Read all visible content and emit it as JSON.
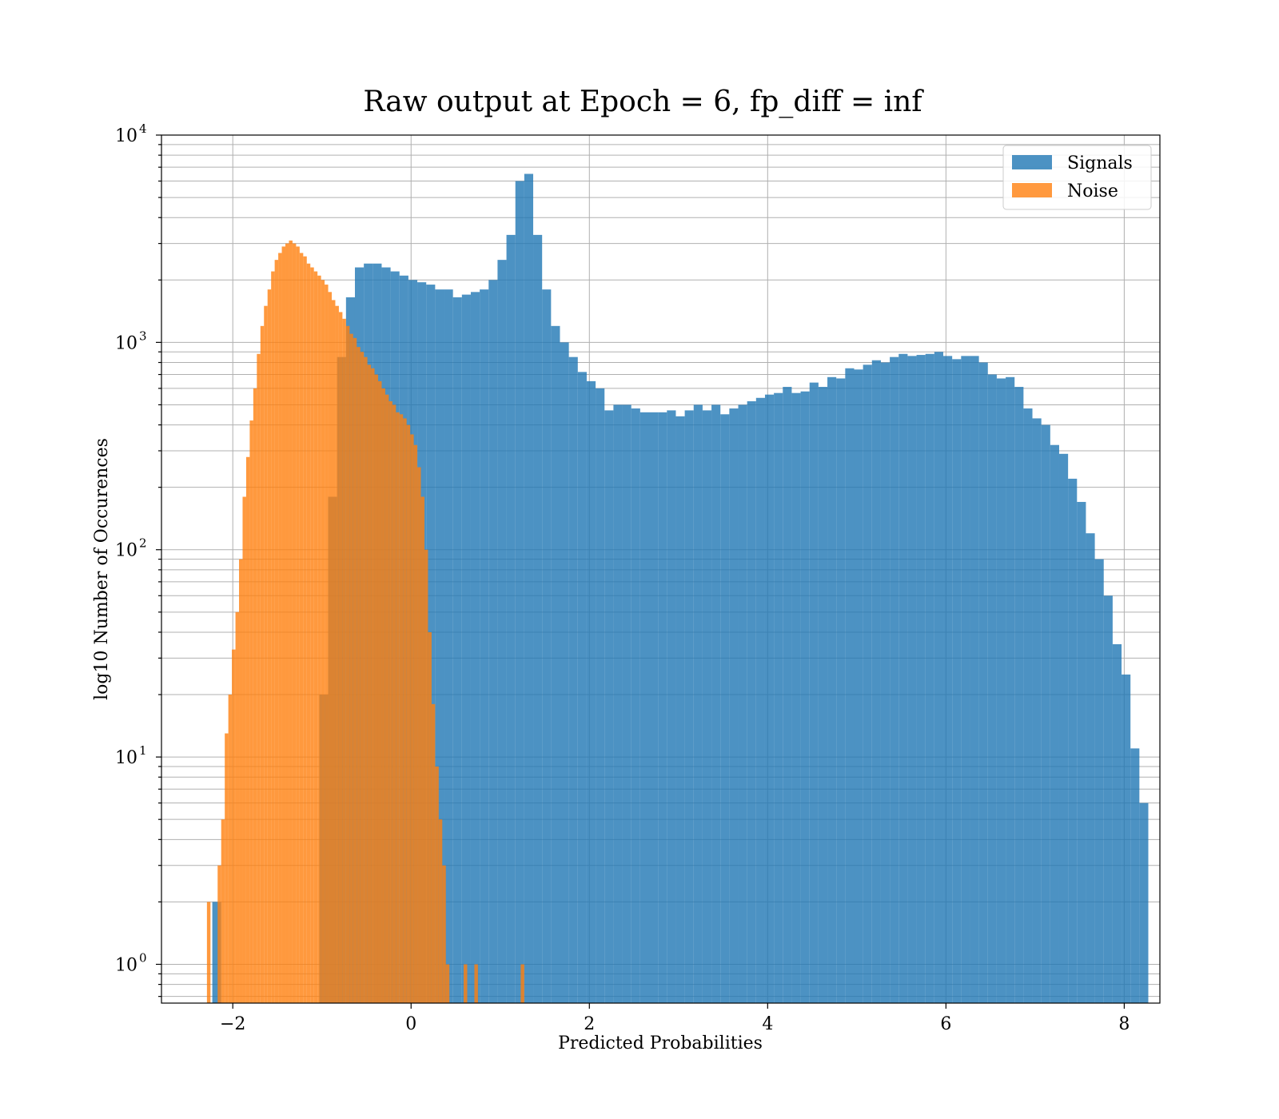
{
  "figure": {
    "title": "Raw output at Epoch = 6, fp_diff = inf"
  },
  "chart_data": {
    "type": "bar",
    "subtype": "overlaid-histogram",
    "title": "Raw output at Epoch = 6, fp_diff = inf",
    "xlabel": "Predicted Probabilities",
    "ylabel": "log10 Number of Occurences",
    "yscale": "log",
    "xlim": [
      -2.8,
      8.4
    ],
    "ylim": [
      0.65,
      10000
    ],
    "xticks": [
      -2,
      0,
      2,
      4,
      6,
      8
    ],
    "xtick_labels": [
      "−2",
      "0",
      "2",
      "4",
      "6",
      "8"
    ],
    "yticks": [
      {
        "value": 1,
        "base": "10",
        "exp": "0"
      },
      {
        "value": 10,
        "base": "10",
        "exp": "1"
      },
      {
        "value": 100,
        "base": "10",
        "exp": "2"
      },
      {
        "value": 1000,
        "base": "10",
        "exp": "3"
      },
      {
        "value": 10000,
        "base": "10",
        "exp": "4"
      }
    ],
    "grid": true,
    "legend_position": "top-right",
    "colors": {
      "Signals": "#1f77b4",
      "Noise": "#ff7f0e"
    },
    "alpha": 0.8,
    "series": [
      {
        "name": "Signals",
        "bin_start": -2.23,
        "bin_width": 0.1,
        "counts": [
          2,
          0,
          0,
          0,
          0,
          0,
          0,
          0,
          0,
          0,
          0,
          0,
          20,
          180,
          850,
          1650,
          2300,
          2400,
          2400,
          2300,
          2200,
          2100,
          2000,
          1950,
          1900,
          1800,
          1800,
          1650,
          1700,
          1750,
          1800,
          2000,
          2500,
          3300,
          6000,
          6500,
          3300,
          1800,
          1200,
          1000,
          850,
          720,
          650,
          600,
          470,
          500,
          500,
          480,
          460,
          460,
          460,
          470,
          440,
          470,
          500,
          470,
          500,
          450,
          480,
          500,
          520,
          540,
          560,
          570,
          610,
          570,
          580,
          640,
          610,
          680,
          670,
          750,
          740,
          780,
          820,
          800,
          850,
          880,
          860,
          870,
          880,
          900,
          860,
          830,
          860,
          860,
          800,
          700,
          670,
          680,
          610,
          480,
          430,
          400,
          320,
          290,
          220,
          170,
          120,
          90,
          60,
          35,
          25,
          11,
          6
        ]
      },
      {
        "name": "Noise",
        "bin_start": -2.29,
        "bin_width": 0.04,
        "counts": [
          2,
          0,
          0,
          3,
          5,
          13,
          20,
          33,
          50,
          90,
          180,
          280,
          420,
          600,
          880,
          1200,
          1500,
          1800,
          2200,
          2500,
          2700,
          2900,
          3000,
          3100,
          3000,
          2900,
          2700,
          2600,
          2400,
          2300,
          2200,
          2100,
          2000,
          1900,
          1750,
          1600,
          1500,
          1400,
          1300,
          1200,
          1100,
          1050,
          950,
          900,
          850,
          780,
          750,
          700,
          650,
          600,
          560,
          520,
          500,
          460,
          450,
          430,
          400,
          360,
          320,
          250,
          180,
          100,
          40,
          18,
          9,
          5,
          3,
          1,
          0,
          0,
          0,
          0,
          1,
          0,
          0,
          1,
          0,
          0,
          0,
          0,
          0,
          0,
          0,
          0,
          0,
          0,
          0,
          0,
          1
        ]
      }
    ]
  }
}
